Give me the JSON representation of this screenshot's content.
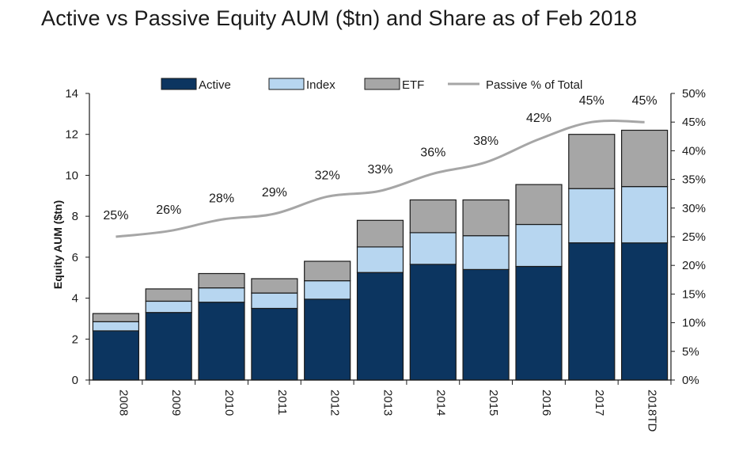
{
  "title": "Active vs Passive Equity AUM ($tn) and Share as of Feb 2018",
  "colors": {
    "active": "#0c3560",
    "index": "#b7d6f0",
    "etf": "#a6a6a6",
    "line": "#a6a6a6",
    "bar_border": "#1a1a1a"
  },
  "chart_data": {
    "type": "bar",
    "stacked": true,
    "title": "Active vs Passive Equity AUM ($tn) and Share as of Feb 2018",
    "categories": [
      "2008",
      "2009",
      "2010",
      "2011",
      "2012",
      "2013",
      "2014",
      "2015",
      "2016",
      "2017",
      "2018TD"
    ],
    "series": [
      {
        "name": "Active",
        "type": "bar",
        "axis": "left",
        "values": [
          2.4,
          3.3,
          3.8,
          3.5,
          3.95,
          5.25,
          5.65,
          5.4,
          5.55,
          6.7,
          6.7
        ]
      },
      {
        "name": "Index",
        "type": "bar",
        "axis": "left",
        "values": [
          0.45,
          0.55,
          0.7,
          0.75,
          0.9,
          1.25,
          1.55,
          1.65,
          2.05,
          2.65,
          2.75
        ]
      },
      {
        "name": "ETF",
        "type": "bar",
        "axis": "left",
        "values": [
          0.4,
          0.6,
          0.7,
          0.7,
          0.95,
          1.3,
          1.6,
          1.75,
          1.95,
          2.65,
          2.75
        ]
      },
      {
        "name": "Passive % of Total",
        "type": "line",
        "axis": "right",
        "values": [
          25,
          26,
          28,
          29,
          32,
          33,
          36,
          38,
          42,
          45,
          45
        ]
      }
    ],
    "pct_labels": [
      "25%",
      "26%",
      "28%",
      "29%",
      "32%",
      "33%",
      "36%",
      "38%",
      "42%",
      "45%",
      "45%"
    ],
    "ylabel": "Equity AUM ($tn)",
    "ylim": [
      0,
      14
    ],
    "y_ticks": [
      "0",
      "2",
      "4",
      "6",
      "8",
      "10",
      "12",
      "14"
    ],
    "y2lim": [
      0,
      50
    ],
    "y2_ticks": [
      "0%",
      "5%",
      "10%",
      "15%",
      "20%",
      "25%",
      "30%",
      "35%",
      "40%",
      "45%",
      "50%"
    ],
    "legend": {
      "position": "top",
      "items": [
        "Active",
        "Index",
        "ETF",
        "Passive % of Total"
      ]
    },
    "grid": false
  }
}
